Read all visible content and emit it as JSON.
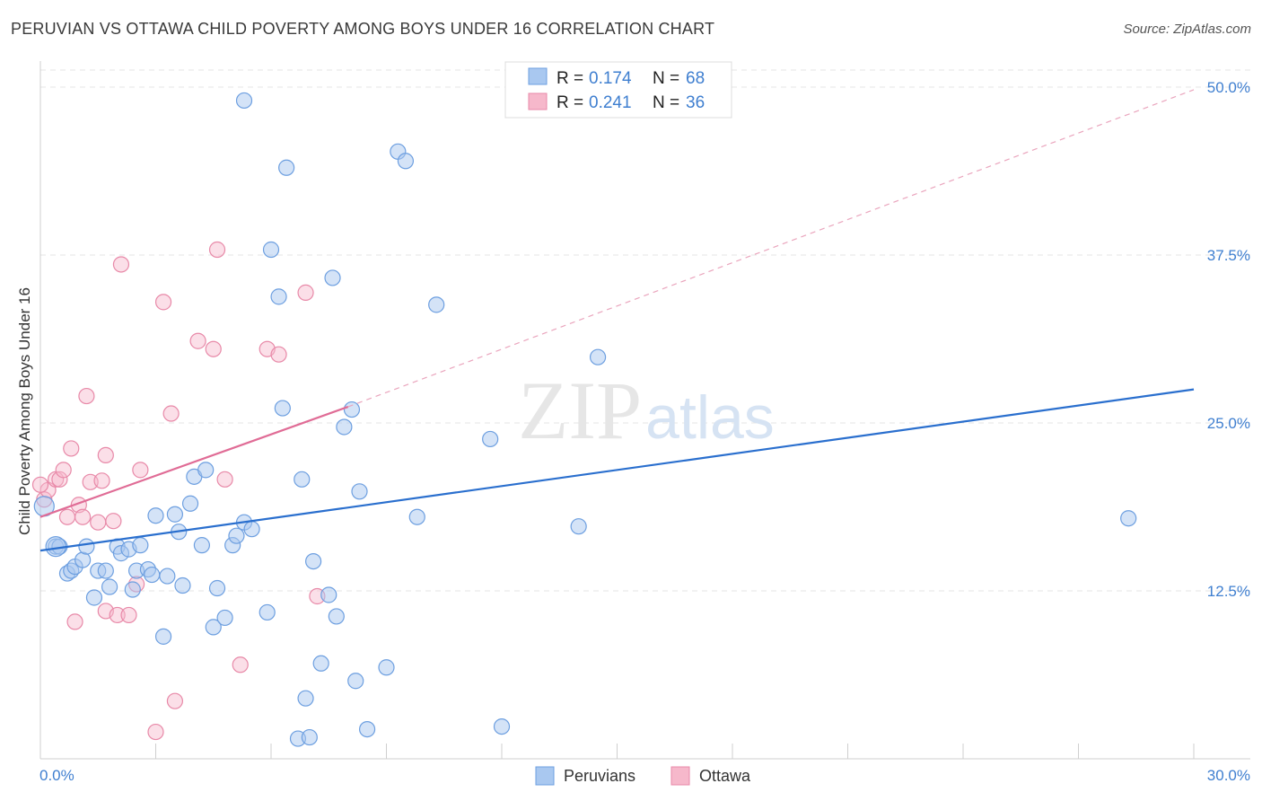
{
  "chart_data": {
    "type": "scatter",
    "title": "PERUVIAN VS OTTAWA CHILD POVERTY AMONG BOYS UNDER 16 CORRELATION CHART",
    "source": "Source: ZipAtlas.com",
    "xlabel": "",
    "ylabel": "Child Poverty Among Boys Under 16",
    "xlim": [
      0,
      30
    ],
    "ylim": [
      0,
      50
    ],
    "x_tick_labels": [
      "0.0%",
      "30.0%"
    ],
    "y_tick_values": [
      12.5,
      25.0,
      37.5,
      50.0
    ],
    "y_tick_labels": [
      "12.5%",
      "25.0%",
      "37.5%",
      "50.0%"
    ],
    "grid": true,
    "watermark": "ZIPatlas",
    "legend_position": "top-center",
    "legend": [
      {
        "name": "Peruvians",
        "r_label": "R =",
        "r_value": "0.174",
        "n_label": "N =",
        "n_value": "68"
      },
      {
        "name": "Ottawa",
        "r_label": "R =",
        "r_value": "0.241",
        "n_label": "N =",
        "n_value": "36"
      }
    ],
    "colors": {
      "peruvians_fill": "#a9c8f0",
      "peruvians_stroke": "#6d9fe0",
      "peruvians_line": "#2a6fce",
      "ottawa_fill": "#f6b8cb",
      "ottawa_stroke": "#e889a8",
      "ottawa_line": "#e06c96",
      "value_text": "#3f7fd0"
    },
    "series": [
      {
        "name": "Peruvians",
        "trend": {
          "x0": 0,
          "y0": 15.5,
          "x1": 30,
          "y1": 27.5
        },
        "points": [
          [
            0.1,
            18.8
          ],
          [
            0.4,
            15.8
          ],
          [
            0.5,
            15.8
          ],
          [
            0.7,
            13.8
          ],
          [
            0.8,
            14
          ],
          [
            0.9,
            14.3
          ],
          [
            1.1,
            14.8
          ],
          [
            1.2,
            15.8
          ],
          [
            1.4,
            12
          ],
          [
            1.5,
            14
          ],
          [
            1.7,
            14
          ],
          [
            1.8,
            12.8
          ],
          [
            2.0,
            15.8
          ],
          [
            2.1,
            15.3
          ],
          [
            2.3,
            15.6
          ],
          [
            2.4,
            12.6
          ],
          [
            2.5,
            14
          ],
          [
            2.6,
            15.9
          ],
          [
            2.8,
            14.1
          ],
          [
            2.9,
            13.7
          ],
          [
            3.0,
            18.1
          ],
          [
            3.2,
            9.1
          ],
          [
            3.3,
            13.6
          ],
          [
            3.5,
            18.2
          ],
          [
            3.6,
            16.9
          ],
          [
            3.7,
            12.9
          ],
          [
            3.9,
            19
          ],
          [
            4.0,
            21
          ],
          [
            4.2,
            15.9
          ],
          [
            4.3,
            21.5
          ],
          [
            4.5,
            9.8
          ],
          [
            4.6,
            12.7
          ],
          [
            4.8,
            10.5
          ],
          [
            5.0,
            15.9
          ],
          [
            5.1,
            16.6
          ],
          [
            5.3,
            17.6
          ],
          [
            5.5,
            17.1
          ],
          [
            5.9,
            10.9
          ],
          [
            5.3,
            49
          ],
          [
            6.0,
            37.9
          ],
          [
            6.2,
            34.4
          ],
          [
            6.3,
            26.1
          ],
          [
            6.4,
            44
          ],
          [
            6.7,
            1.5
          ],
          [
            6.8,
            20.8
          ],
          [
            6.9,
            4.5
          ],
          [
            7.0,
            1.6
          ],
          [
            7.1,
            14.7
          ],
          [
            7.3,
            7.1
          ],
          [
            7.5,
            12.2
          ],
          [
            7.6,
            35.8
          ],
          [
            7.7,
            10.6
          ],
          [
            7.9,
            24.7
          ],
          [
            8.1,
            26
          ],
          [
            8.2,
            5.8
          ],
          [
            8.3,
            19.9
          ],
          [
            8.5,
            2.2
          ],
          [
            9.0,
            6.8
          ],
          [
            9.3,
            45.2
          ],
          [
            9.5,
            44.5
          ],
          [
            9.8,
            18
          ],
          [
            10.3,
            33.8
          ],
          [
            11.7,
            23.8
          ],
          [
            12.0,
            2.4
          ],
          [
            14.0,
            17.3
          ],
          [
            14.5,
            29.9
          ],
          [
            28.3,
            17.9
          ],
          [
            0.4,
            15.8
          ]
        ]
      },
      {
        "name": "Ottawa",
        "trend": {
          "x0": 0,
          "y0": 18.0,
          "x1": 8.0,
          "y1": 26.2
        },
        "extension": {
          "x0": 8.0,
          "y0": 26.2,
          "x1": 30,
          "y1": 49.8
        },
        "points": [
          [
            0.1,
            19.3
          ],
          [
            0.2,
            20
          ],
          [
            0.4,
            20.8
          ],
          [
            0.5,
            20.8
          ],
          [
            0.6,
            21.5
          ],
          [
            0.7,
            18
          ],
          [
            0.8,
            23.1
          ],
          [
            0.9,
            10.2
          ],
          [
            1.0,
            18.9
          ],
          [
            1.1,
            18
          ],
          [
            1.2,
            27
          ],
          [
            1.3,
            20.6
          ],
          [
            1.5,
            17.6
          ],
          [
            1.6,
            20.7
          ],
          [
            1.7,
            11
          ],
          [
            1.7,
            22.6
          ],
          [
            1.9,
            17.7
          ],
          [
            2.0,
            10.7
          ],
          [
            2.1,
            36.8
          ],
          [
            2.3,
            10.7
          ],
          [
            2.5,
            13
          ],
          [
            2.6,
            21.5
          ],
          [
            3.2,
            34
          ],
          [
            3.4,
            25.7
          ],
          [
            3.5,
            4.3
          ],
          [
            3.0,
            2.0
          ],
          [
            4.1,
            31.1
          ],
          [
            4.5,
            30.5
          ],
          [
            4.6,
            37.9
          ],
          [
            4.8,
            20.8
          ],
          [
            5.2,
            7
          ],
          [
            5.9,
            30.5
          ],
          [
            6.2,
            30.1
          ],
          [
            6.9,
            34.7
          ],
          [
            7.2,
            12.1
          ],
          [
            0.0,
            20.4
          ]
        ]
      }
    ]
  }
}
